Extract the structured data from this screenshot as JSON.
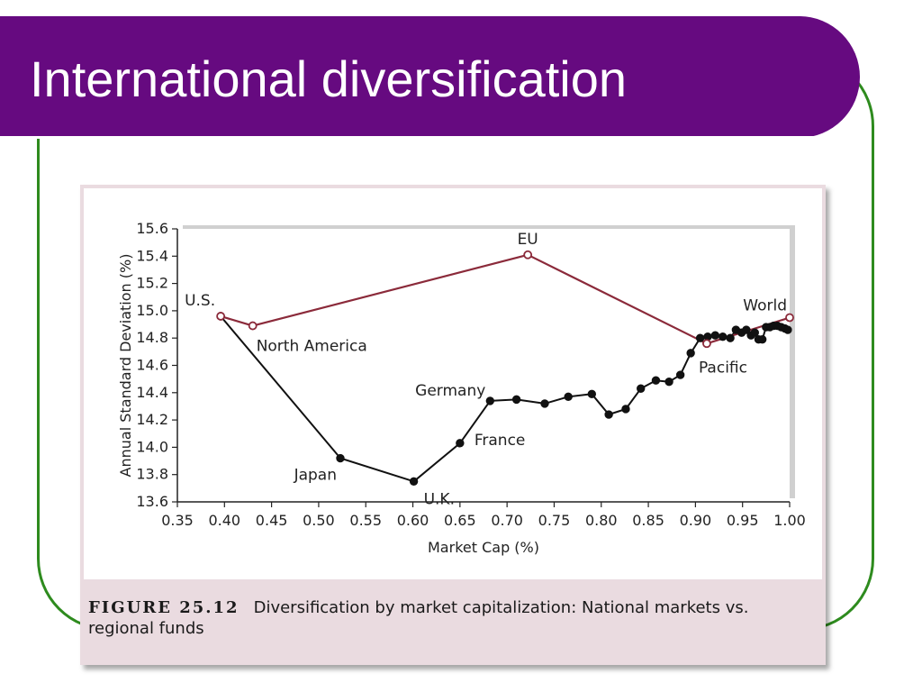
{
  "slide": {
    "title": "International diversification"
  },
  "figure": {
    "caption_label": "FIGURE 25.12",
    "caption_text": "Diversification by market capitalization: National markets vs. regional funds"
  },
  "colors": {
    "title_bar": "#660a80",
    "frame": "#2e8b1e",
    "regional_line": "#8b2a3a",
    "national_line": "#111111"
  },
  "chart_data": {
    "type": "line",
    "xlabel": "Market Cap (%)",
    "ylabel": "Annual Standard Deviation (%)",
    "xlim": [
      0.35,
      1.0
    ],
    "ylim": [
      13.6,
      15.6
    ],
    "x_ticks": [
      "0.35",
      "0.40",
      "0.45",
      "0.50",
      "0.55",
      "0.60",
      "0.65",
      "0.70",
      "0.75",
      "0.80",
      "0.85",
      "0.90",
      "0.95",
      "1.00"
    ],
    "y_ticks": [
      "13.6",
      "13.8",
      "14.0",
      "14.2",
      "14.4",
      "14.6",
      "14.8",
      "15.0",
      "15.2",
      "15.4",
      "15.6"
    ],
    "series": [
      {
        "marker": "open-circle",
        "points": [
          [
            0.396,
            14.96
          ],
          [
            0.43,
            14.89
          ],
          [
            0.722,
            15.41
          ],
          [
            0.912,
            14.76
          ],
          [
            1.0,
            14.95
          ]
        ]
      },
      {
        "marker": "filled-circle",
        "points": [
          [
            0.396,
            14.96
          ],
          [
            0.523,
            13.92
          ],
          [
            0.601,
            13.75
          ],
          [
            0.65,
            14.03
          ],
          [
            0.682,
            14.34
          ],
          [
            0.71,
            14.35
          ],
          [
            0.74,
            14.32
          ],
          [
            0.765,
            14.37
          ],
          [
            0.79,
            14.39
          ],
          [
            0.808,
            14.24
          ],
          [
            0.826,
            14.28
          ],
          [
            0.842,
            14.43
          ],
          [
            0.858,
            14.49
          ],
          [
            0.872,
            14.48
          ],
          [
            0.884,
            14.53
          ],
          [
            0.895,
            14.69
          ],
          [
            0.905,
            14.8
          ],
          [
            0.913,
            14.81
          ],
          [
            0.921,
            14.82
          ],
          [
            0.929,
            14.81
          ],
          [
            0.937,
            14.8
          ],
          [
            0.943,
            14.86
          ],
          [
            0.949,
            14.84
          ],
          [
            0.954,
            14.86
          ],
          [
            0.959,
            14.82
          ],
          [
            0.963,
            14.84
          ],
          [
            0.967,
            14.79
          ],
          [
            0.971,
            14.79
          ],
          [
            0.975,
            14.88
          ],
          [
            0.979,
            14.88
          ],
          [
            0.983,
            14.89
          ],
          [
            0.987,
            14.89
          ],
          [
            0.991,
            14.88
          ],
          [
            0.995,
            14.87
          ],
          [
            0.998,
            14.86
          ]
        ]
      }
    ],
    "annotations": [
      {
        "text": "U.S.",
        "x": 0.396,
        "y": 14.96
      },
      {
        "text": "North America",
        "x": 0.43,
        "y": 14.89
      },
      {
        "text": "EU",
        "x": 0.722,
        "y": 15.41
      },
      {
        "text": "World",
        "x": 1.0,
        "y": 14.95
      },
      {
        "text": "Pacific",
        "x": 0.912,
        "y": 14.76
      },
      {
        "text": "Germany",
        "x": 0.682,
        "y": 14.34
      },
      {
        "text": "France",
        "x": 0.65,
        "y": 14.03
      },
      {
        "text": "Japan",
        "x": 0.523,
        "y": 13.92
      },
      {
        "text": "U.K.",
        "x": 0.601,
        "y": 13.75
      }
    ]
  }
}
